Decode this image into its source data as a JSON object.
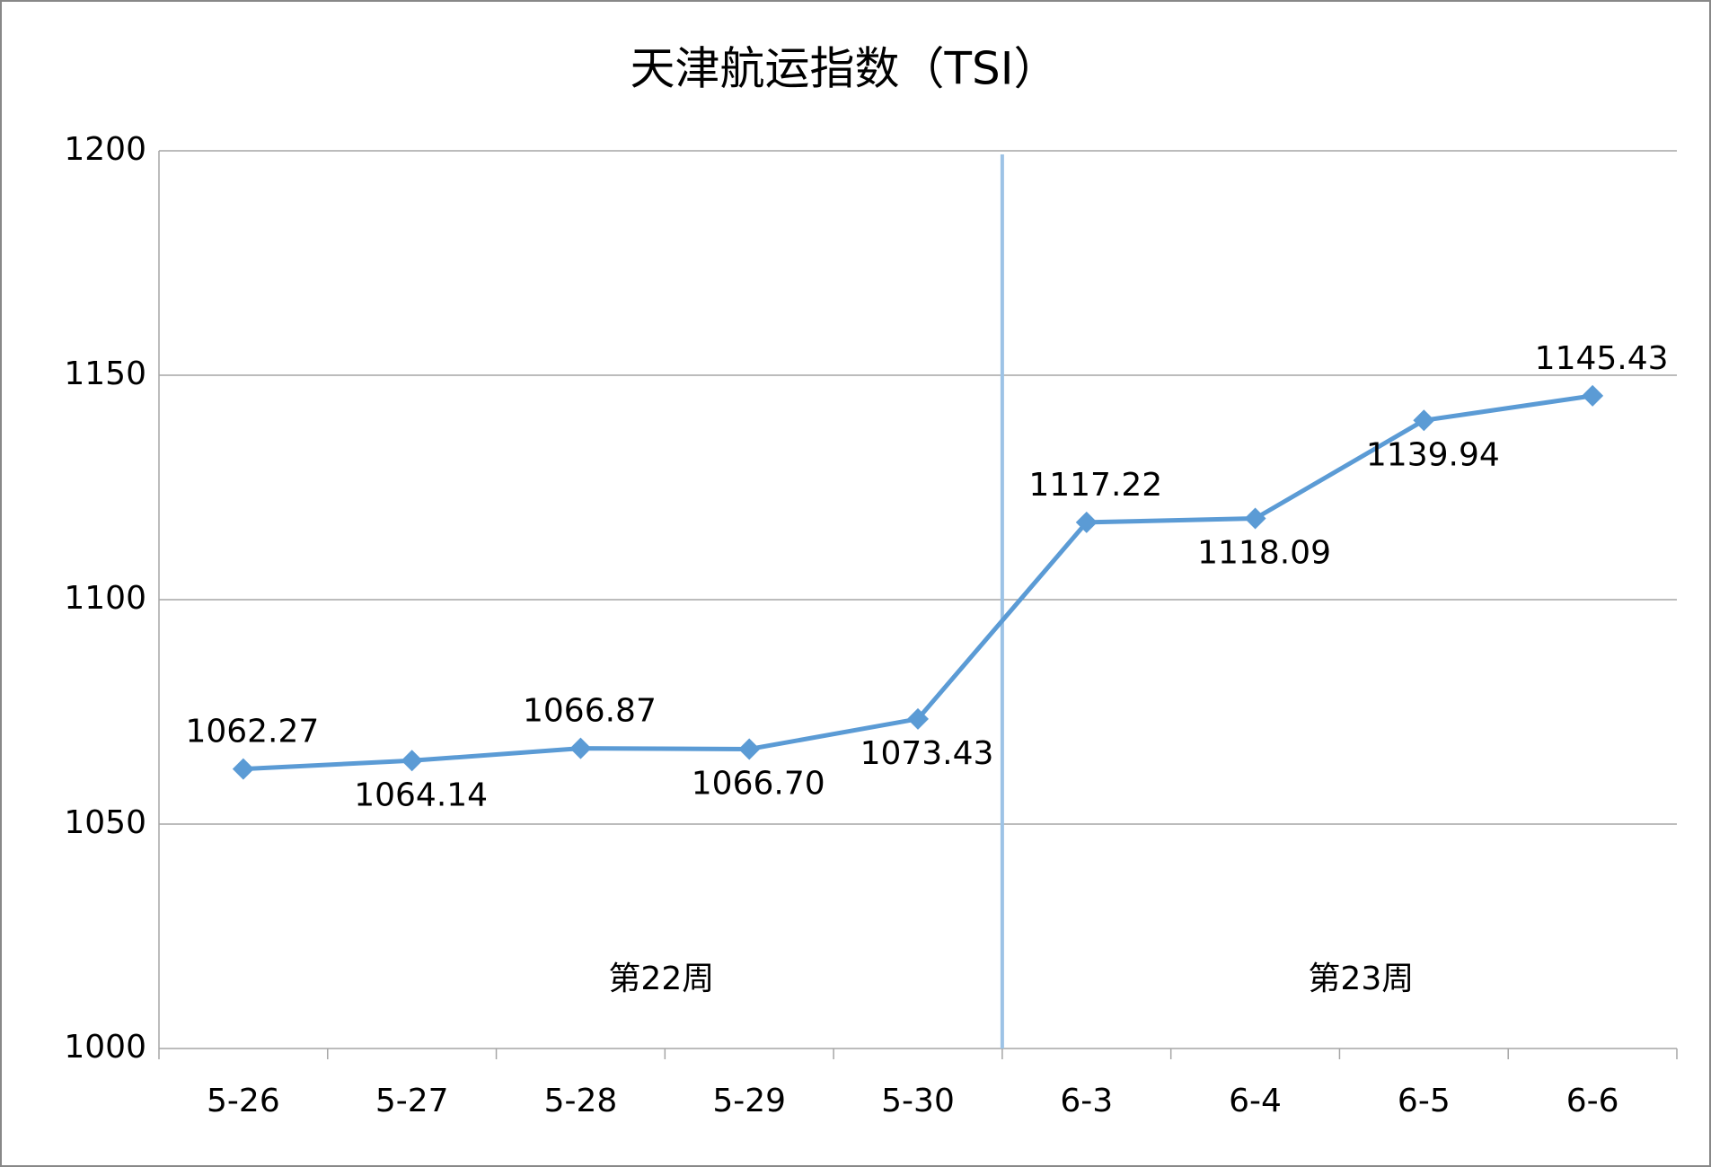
{
  "chart_data": {
    "type": "line",
    "title": "天津航运指数（TSI）",
    "categories": [
      "5-26",
      "5-27",
      "5-28",
      "5-29",
      "5-30",
      "6-3",
      "6-4",
      "6-5",
      "6-6"
    ],
    "values": [
      1062.27,
      1064.14,
      1066.87,
      1066.7,
      1073.43,
      1117.22,
      1118.09,
      1139.94,
      1145.43
    ],
    "value_labels": [
      "1062.27",
      "1064.14",
      "1066.87",
      "1066.70",
      "1073.43",
      "1117.22",
      "1118.09",
      "1139.94",
      "1145.43"
    ],
    "color": "#5b9bd5",
    "ylim": [
      1000,
      1200
    ],
    "yticks": [
      1000,
      1050,
      1100,
      1150,
      1200
    ],
    "grid": true,
    "annotations": [
      "第22周",
      "第23周"
    ]
  }
}
